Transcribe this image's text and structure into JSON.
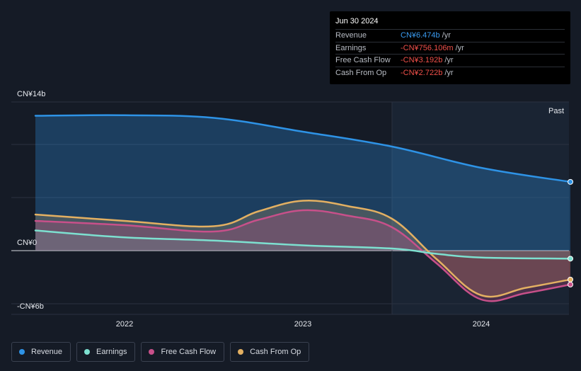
{
  "tooltip": {
    "date": "Jun 30 2024",
    "rows": [
      {
        "label": "Revenue",
        "value": "CN¥6.474b",
        "unit": "/yr",
        "color": "#3a9bf0"
      },
      {
        "label": "Earnings",
        "value": "-CN¥756.106m",
        "unit": "/yr",
        "color": "#f0504a"
      },
      {
        "label": "Free Cash Flow",
        "value": "-CN¥3.192b",
        "unit": "/yr",
        "color": "#f0504a"
      },
      {
        "label": "Cash From Op",
        "value": "-CN¥2.722b",
        "unit": "/yr",
        "color": "#f0504a"
      }
    ]
  },
  "legend": [
    {
      "label": "Revenue",
      "color": "#2e93e6"
    },
    {
      "label": "Earnings",
      "color": "#7de0d0"
    },
    {
      "label": "Free Cash Flow",
      "color": "#c8508a"
    },
    {
      "label": "Cash From Op",
      "color": "#e3b062"
    }
  ],
  "chart_data": {
    "type": "area",
    "y_tick_labels": [
      "CN¥14b",
      "CN¥0",
      "-CN¥6b"
    ],
    "y_ticks": [
      14,
      0,
      -6
    ],
    "ylim": [
      -6,
      14
    ],
    "x_tick_labels": [
      "2022",
      "2023",
      "2024"
    ],
    "x_ticks": [
      2022,
      2023,
      2024
    ],
    "xlim": [
      2021.5,
      2024.5
    ],
    "past_label": "Past",
    "past_start": 2023.5,
    "grid": true,
    "series": [
      {
        "name": "Revenue",
        "color": "#2e93e6",
        "x": [
          2021.5,
          2022.0,
          2022.5,
          2023.0,
          2023.5,
          2024.0,
          2024.5
        ],
        "y": [
          12.7,
          12.75,
          12.5,
          11.2,
          9.8,
          7.8,
          6.474
        ]
      },
      {
        "name": "Earnings",
        "color": "#7de0d0",
        "x": [
          2021.5,
          2022.0,
          2022.5,
          2023.0,
          2023.5,
          2023.75,
          2024.0,
          2024.5
        ],
        "y": [
          1.9,
          1.25,
          0.95,
          0.5,
          0.2,
          -0.3,
          -0.65,
          -0.756
        ]
      },
      {
        "name": "Free Cash Flow",
        "color": "#c8508a",
        "x": [
          2021.5,
          2022.0,
          2022.5,
          2022.75,
          2023.0,
          2023.25,
          2023.5,
          2023.75,
          2024.0,
          2024.25,
          2024.5
        ],
        "y": [
          2.8,
          2.4,
          1.8,
          2.9,
          3.8,
          3.3,
          2.2,
          -1.2,
          -4.6,
          -4.0,
          -3.192
        ]
      },
      {
        "name": "Cash From Op",
        "color": "#e3b062",
        "x": [
          2021.5,
          2022.0,
          2022.5,
          2022.75,
          2023.0,
          2023.25,
          2023.5,
          2023.75,
          2024.0,
          2024.25,
          2024.5
        ],
        "y": [
          3.4,
          2.8,
          2.3,
          3.7,
          4.7,
          4.2,
          3.0,
          -0.8,
          -4.2,
          -3.5,
          -2.722
        ]
      }
    ]
  }
}
